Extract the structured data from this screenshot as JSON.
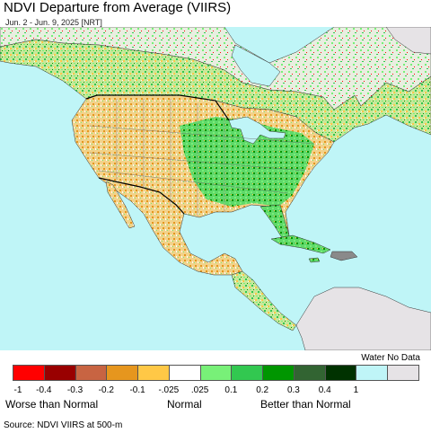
{
  "header": {
    "title": "NDVI Departure from Average (VIIRS)",
    "subtitle": "Jun. 2 - Jun. 9, 2025 [NRT]"
  },
  "map": {
    "ocean_color": "#bff5f7",
    "land_color": "#e6e3e6",
    "border_color": "#000000"
  },
  "legend": {
    "water_no_data_label": "Water No Data",
    "swatches": [
      {
        "name": "lt-neg-04",
        "color": "#ff0000"
      },
      {
        "name": "neg-04-to-neg-03",
        "color": "#990000"
      },
      {
        "name": "neg-03-to-neg-02",
        "color": "#c86442"
      },
      {
        "name": "neg-02-to-neg-01",
        "color": "#e6961e"
      },
      {
        "name": "neg-01-to-neg-0025",
        "color": "#ffc846"
      },
      {
        "name": "normal",
        "color": "#ffffff"
      },
      {
        "name": "0025-to-01",
        "color": "#78f078"
      },
      {
        "name": "01-to-02",
        "color": "#32c850"
      },
      {
        "name": "02-to-03",
        "color": "#009600"
      },
      {
        "name": "03-to-04",
        "color": "#326432"
      },
      {
        "name": "gt-04",
        "color": "#003200"
      },
      {
        "name": "water",
        "color": "#bff5f7"
      },
      {
        "name": "no-data",
        "color": "#e6e3e6"
      }
    ],
    "ticks": [
      "-1",
      "-0.4",
      "-0.3",
      "-0.2",
      "-0.1",
      "-.025",
      ".025",
      "0.1",
      "0.2",
      "0.3",
      "0.4",
      "1"
    ],
    "categories": {
      "worse": "Worse than Normal",
      "normal": "Normal",
      "better": "Better than Normal"
    }
  },
  "footer": {
    "source": "Source: NDVI VIIRS at 500-m"
  }
}
